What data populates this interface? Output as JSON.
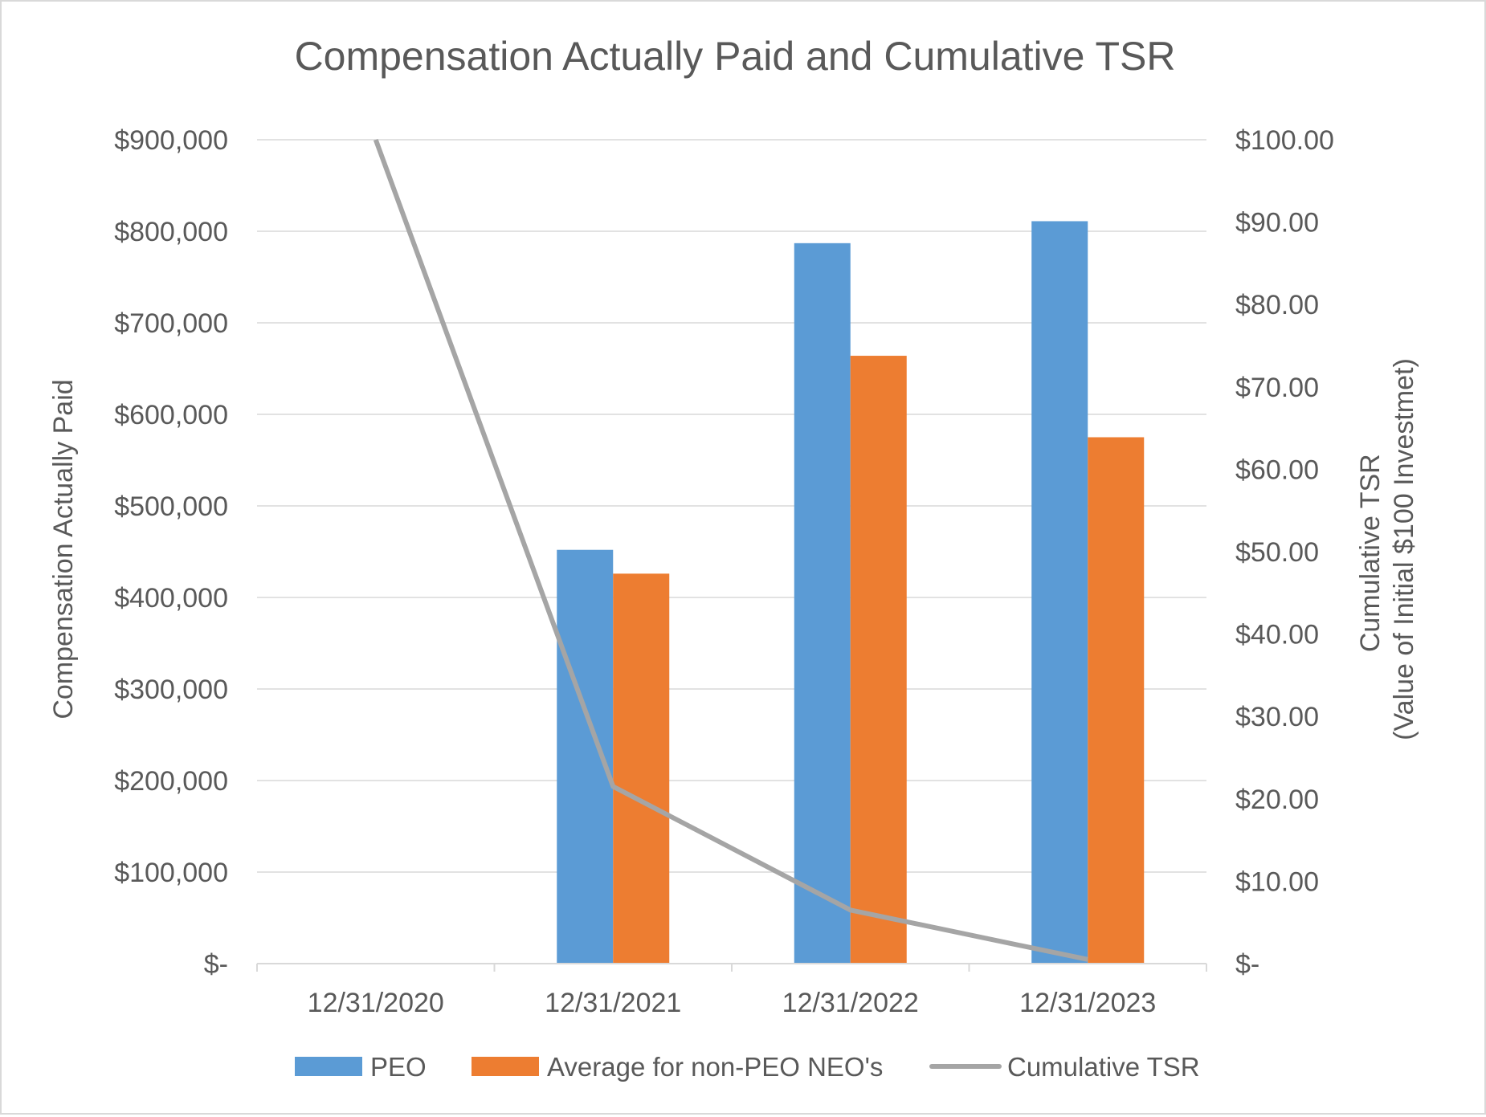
{
  "chart_data": {
    "type": "bar",
    "title": "Compensation Actually Paid and Cumulative TSR",
    "categories": [
      "12/31/2020",
      "12/31/2021",
      "12/31/2022",
      "12/31/2023"
    ],
    "ylabel": "Compensation Actually Paid",
    "ylabel_right": [
      "Cumulative TSR",
      "(Value of Initial $100 Investmet)"
    ],
    "ylim": [
      0,
      900000
    ],
    "ylim_right": [
      0,
      100
    ],
    "y_ticks": [
      "$-",
      "$100,000",
      "$200,000",
      "$300,000",
      "$400,000",
      "$500,000",
      "$600,000",
      "$700,000",
      "$800,000",
      "$900,000"
    ],
    "y_ticks_right": [
      "$-",
      "$10.00",
      "$20.00",
      "$30.00",
      "$40.00",
      "$50.00",
      "$60.00",
      "$70.00",
      "$80.00",
      "$90.00",
      "$100.00"
    ],
    "grid": true,
    "legend_position": "bottom",
    "series": [
      {
        "name": "PEO",
        "kind": "bar",
        "axis": "left",
        "color": "#5b9bd5",
        "values": [
          null,
          452000,
          787000,
          811000
        ]
      },
      {
        "name": "Average for non-PEO NEO's",
        "kind": "bar",
        "axis": "left",
        "color": "#ed7d31",
        "values": [
          null,
          426000,
          664000,
          575000
        ]
      },
      {
        "name": "Cumulative TSR",
        "kind": "line",
        "axis": "right",
        "color": "#a5a5a5",
        "values": [
          100.0,
          21.5,
          6.5,
          0.5
        ]
      }
    ]
  }
}
